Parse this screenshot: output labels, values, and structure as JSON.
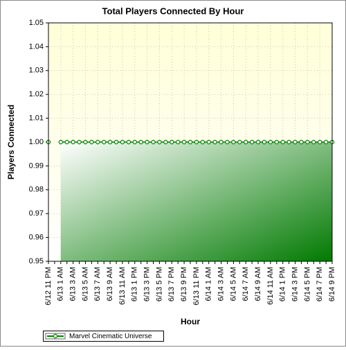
{
  "chart_data": {
    "type": "line",
    "title": "Total Players Connected By Hour",
    "x_label": "Hour",
    "y_label": "Players Connected",
    "categories": [
      "6/12 11 PM",
      null,
      "6/13 1 AM",
      null,
      "6/13 3 AM",
      null,
      "6/13 5 AM",
      null,
      "6/13 7 AM",
      null,
      "6/13 9 AM",
      null,
      "6/13 11 AM",
      null,
      "6/13 1 PM",
      null,
      "6/13 3 PM",
      null,
      "6/13 5 PM",
      null,
      "6/13 7 PM",
      null,
      "6/13 9 PM",
      null,
      "6/13 11 PM",
      null,
      "6/14 1 AM",
      null,
      "6/14 3 AM",
      null,
      "6/14 5 AM",
      null,
      "6/14 7 AM",
      null,
      "6/14 9 AM",
      null,
      "6/14 11 AM",
      null,
      "6/14 1 PM",
      null,
      "6/14 3 PM",
      null,
      "6/14 5 PM",
      null,
      "6/14 7 PM",
      null,
      "6/14 9 PM"
    ],
    "series": [
      {
        "name": "Marvel Cinematic Universe",
        "color": "#008000",
        "values": [
          1,
          null,
          1,
          1,
          1,
          1,
          1,
          1,
          1,
          1,
          1,
          1,
          1,
          1,
          1,
          1,
          1,
          1,
          1,
          1,
          1,
          1,
          1,
          1,
          1,
          1,
          1,
          1,
          1,
          1,
          1,
          1,
          1,
          1,
          1,
          1,
          1,
          1,
          1,
          1,
          1,
          1,
          1,
          1,
          1,
          1,
          1
        ]
      }
    ],
    "ylim": [
      0.95,
      1.05
    ],
    "yticks": [
      {
        "value": 0.95,
        "label": "0.95"
      },
      {
        "value": 0.96,
        "label": "0.96"
      },
      {
        "value": 0.97,
        "label": "0.97"
      },
      {
        "value": 0.98,
        "label": "0.98"
      },
      {
        "value": 0.99,
        "label": "0.99"
      },
      {
        "value": 1,
        "label": "1.00"
      },
      {
        "value": 1.01,
        "label": "1.01"
      },
      {
        "value": 1.02,
        "label": "1.02"
      },
      {
        "value": 1.03,
        "label": "1.03"
      },
      {
        "value": 1.04,
        "label": "1.04"
      },
      {
        "value": 1.05,
        "label": "1.05"
      }
    ],
    "grid": true,
    "legend": "bottom-left"
  }
}
